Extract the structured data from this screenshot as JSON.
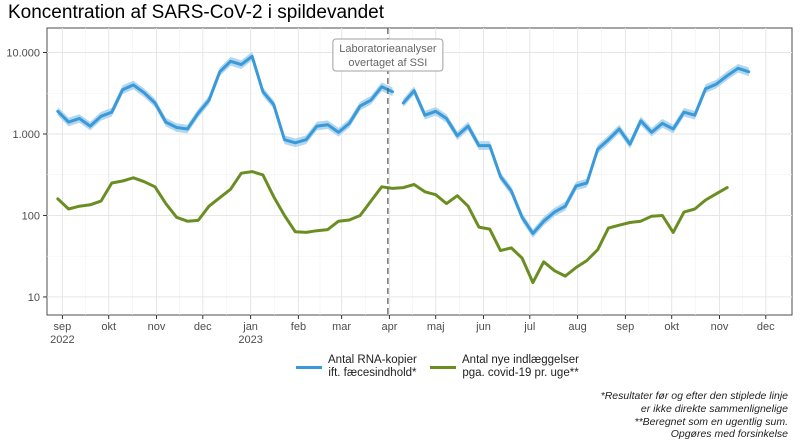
{
  "chart_data": {
    "type": "line",
    "title": "Koncentration af SARS-CoV-2 i spildevandet",
    "y_scale": "log",
    "ylim": [
      6,
      20000
    ],
    "x_range": [
      "2022-08-22",
      "2023-12-18"
    ],
    "x_ticks": [
      {
        "date": "2022-09-01",
        "label": "sep",
        "year": "2022"
      },
      {
        "date": "2022-10-01",
        "label": "okt",
        "year": ""
      },
      {
        "date": "2022-11-01",
        "label": "nov",
        "year": ""
      },
      {
        "date": "2022-12-01",
        "label": "dec",
        "year": ""
      },
      {
        "date": "2023-01-01",
        "label": "jan",
        "year": "2023"
      },
      {
        "date": "2023-02-01",
        "label": "feb",
        "year": ""
      },
      {
        "date": "2023-03-01",
        "label": "mar",
        "year": ""
      },
      {
        "date": "2023-04-01",
        "label": "apr",
        "year": ""
      },
      {
        "date": "2023-05-01",
        "label": "maj",
        "year": ""
      },
      {
        "date": "2023-06-01",
        "label": "jun",
        "year": ""
      },
      {
        "date": "2023-07-01",
        "label": "jul",
        "year": ""
      },
      {
        "date": "2023-08-01",
        "label": "aug",
        "year": ""
      },
      {
        "date": "2023-09-01",
        "label": "sep",
        "year": ""
      },
      {
        "date": "2023-10-01",
        "label": "okt",
        "year": ""
      },
      {
        "date": "2023-11-01",
        "label": "nov",
        "year": ""
      },
      {
        "date": "2023-12-01",
        "label": "dec",
        "year": ""
      }
    ],
    "y_ticks": [
      {
        "value": 10,
        "label": "10"
      },
      {
        "value": 100,
        "label": "100"
      },
      {
        "value": 1000,
        "label": "1.000"
      },
      {
        "value": 10000,
        "label": "10.000"
      }
    ],
    "grid": true,
    "legend_position": "bottom",
    "annotation": {
      "date": "2023-03-31",
      "lines": [
        "Laboratorieanalyser",
        "overtaget af SSI"
      ]
    },
    "series": [
      {
        "name": "Antal RNA-kopier ift. fæcesindhold*",
        "legend_lines": [
          "Antal RNA-kopier",
          "ift. fæcesindhold*"
        ],
        "color": "#3a9ad9",
        "band_color": "#b3d7ef",
        "segments": [
          [
            [
              "2022-08-29",
              1900
            ],
            [
              "2022-09-05",
              1400
            ],
            [
              "2022-09-12",
              1550
            ],
            [
              "2022-09-19",
              1250
            ],
            [
              "2022-09-26",
              1650
            ],
            [
              "2022-10-03",
              1850
            ],
            [
              "2022-10-10",
              3500
            ],
            [
              "2022-10-17",
              4000
            ],
            [
              "2022-10-24",
              3200
            ],
            [
              "2022-10-31",
              2400
            ],
            [
              "2022-11-07",
              1400
            ],
            [
              "2022-11-14",
              1200
            ],
            [
              "2022-11-21",
              1150
            ],
            [
              "2022-11-28",
              1800
            ],
            [
              "2022-12-05",
              2600
            ],
            [
              "2022-12-12",
              5800
            ],
            [
              "2022-12-19",
              7800
            ],
            [
              "2022-12-26",
              7100
            ],
            [
              "2023-01-02",
              9000
            ],
            [
              "2023-01-09",
              3300
            ],
            [
              "2023-01-16",
              2300
            ],
            [
              "2023-01-23",
              850
            ],
            [
              "2023-01-30",
              780
            ],
            [
              "2023-02-06",
              850
            ],
            [
              "2023-02-13",
              1250
            ],
            [
              "2023-02-20",
              1300
            ],
            [
              "2023-02-27",
              1050
            ],
            [
              "2023-03-06",
              1350
            ],
            [
              "2023-03-13",
              2200
            ],
            [
              "2023-03-20",
              2600
            ],
            [
              "2023-03-27",
              3800
            ],
            [
              "2023-04-03",
              3300
            ]
          ],
          [
            [
              "2023-04-10",
              2400
            ],
            [
              "2023-04-17",
              3400
            ],
            [
              "2023-04-24",
              1700
            ],
            [
              "2023-05-01",
              1900
            ],
            [
              "2023-05-08",
              1550
            ],
            [
              "2023-05-15",
              950
            ],
            [
              "2023-05-22",
              1250
            ],
            [
              "2023-05-29",
              720
            ],
            [
              "2023-06-05",
              720
            ],
            [
              "2023-06-12",
              300
            ],
            [
              "2023-06-19",
              200
            ],
            [
              "2023-06-26",
              95
            ],
            [
              "2023-07-03",
              60
            ],
            [
              "2023-07-10",
              85
            ],
            [
              "2023-07-17",
              110
            ],
            [
              "2023-07-24",
              130
            ],
            [
              "2023-07-31",
              230
            ],
            [
              "2023-08-07",
              250
            ],
            [
              "2023-08-14",
              650
            ],
            [
              "2023-08-21",
              850
            ],
            [
              "2023-08-28",
              1150
            ],
            [
              "2023-09-04",
              750
            ],
            [
              "2023-09-11",
              1450
            ],
            [
              "2023-09-18",
              1050
            ],
            [
              "2023-09-25",
              1350
            ],
            [
              "2023-10-02",
              1150
            ],
            [
              "2023-10-09",
              1850
            ],
            [
              "2023-10-16",
              1700
            ],
            [
              "2023-10-23",
              3600
            ],
            [
              "2023-10-30",
              4100
            ],
            [
              "2023-11-06",
              5200
            ],
            [
              "2023-11-13",
              6400
            ],
            [
              "2023-11-20",
              5800
            ]
          ]
        ]
      },
      {
        "name": "Antal nye indlæggelser pga. covid-19 pr. uge**",
        "legend_lines": [
          "Antal nye indlæggelser",
          "pga. covid-19 pr. uge**"
        ],
        "color": "#6b8e23",
        "segments": [
          [
            [
              "2022-08-29",
              160
            ],
            [
              "2022-09-05",
              120
            ],
            [
              "2022-09-12",
              130
            ],
            [
              "2022-09-19",
              135
            ],
            [
              "2022-09-26",
              150
            ],
            [
              "2022-10-03",
              250
            ],
            [
              "2022-10-10",
              265
            ],
            [
              "2022-10-17",
              290
            ],
            [
              "2022-10-24",
              260
            ],
            [
              "2022-10-31",
              225
            ],
            [
              "2022-11-07",
              140
            ],
            [
              "2022-11-14",
              95
            ],
            [
              "2022-11-21",
              85
            ],
            [
              "2022-11-28",
              87
            ],
            [
              "2022-12-05",
              130
            ],
            [
              "2022-12-12",
              165
            ],
            [
              "2022-12-19",
              210
            ],
            [
              "2022-12-26",
              330
            ],
            [
              "2023-01-02",
              345
            ],
            [
              "2023-01-09",
              315
            ],
            [
              "2023-01-16",
              170
            ],
            [
              "2023-01-23",
              100
            ],
            [
              "2023-01-30",
              63
            ],
            [
              "2023-02-06",
              62
            ],
            [
              "2023-02-13",
              65
            ],
            [
              "2023-02-20",
              67
            ],
            [
              "2023-02-27",
              85
            ],
            [
              "2023-03-06",
              88
            ],
            [
              "2023-03-13",
              100
            ],
            [
              "2023-03-20",
              150
            ],
            [
              "2023-03-27",
              225
            ],
            [
              "2023-04-03",
              215
            ],
            [
              "2023-04-10",
              220
            ],
            [
              "2023-04-17",
              240
            ],
            [
              "2023-04-24",
              195
            ],
            [
              "2023-05-01",
              180
            ],
            [
              "2023-05-08",
              140
            ],
            [
              "2023-05-15",
              175
            ],
            [
              "2023-05-22",
              130
            ],
            [
              "2023-05-29",
              72
            ],
            [
              "2023-06-05",
              68
            ],
            [
              "2023-06-12",
              37
            ],
            [
              "2023-06-19",
              40
            ],
            [
              "2023-06-26",
              30
            ],
            [
              "2023-07-03",
              15
            ],
            [
              "2023-07-10",
              27
            ],
            [
              "2023-07-17",
              21
            ],
            [
              "2023-07-24",
              18
            ],
            [
              "2023-07-31",
              23
            ],
            [
              "2023-08-07",
              28
            ],
            [
              "2023-08-14",
              38
            ],
            [
              "2023-08-21",
              70
            ],
            [
              "2023-08-28",
              76
            ],
            [
              "2023-09-04",
              82
            ],
            [
              "2023-09-11",
              85
            ],
            [
              "2023-09-18",
              98
            ],
            [
              "2023-09-25",
              100
            ],
            [
              "2023-10-02",
              62
            ],
            [
              "2023-10-09",
              110
            ],
            [
              "2023-10-16",
              120
            ],
            [
              "2023-10-23",
              155
            ],
            [
              "2023-10-30",
              185
            ],
            [
              "2023-11-06",
              220
            ]
          ]
        ]
      }
    ],
    "footnotes": [
      "*Resultater før og efter den stiplede linje",
      "er ikke direkte sammenlignelige",
      "**Beregnet som en ugentlig sum.",
      "Opgøres med forsinkelse"
    ]
  }
}
